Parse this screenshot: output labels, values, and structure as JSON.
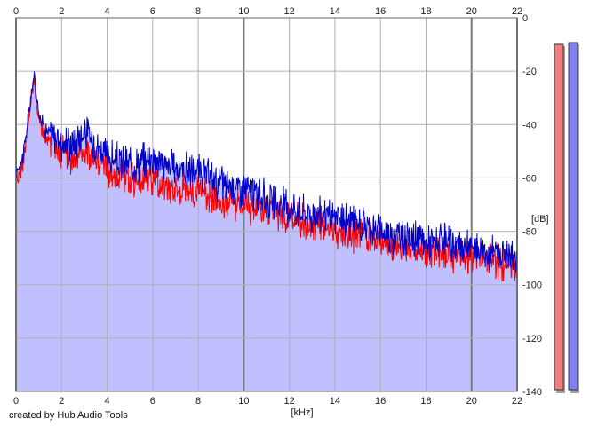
{
  "chart_data": {
    "type": "area",
    "title": "",
    "xlabel": "[kHz]",
    "ylabel": "[dB]",
    "xlim": [
      0,
      22
    ],
    "ylim": [
      -140,
      0
    ],
    "x_ticks": [
      0,
      2,
      4,
      6,
      8,
      10,
      12,
      14,
      16,
      18,
      20,
      22
    ],
    "y_ticks": [
      0,
      -20,
      -40,
      -60,
      -80,
      -100,
      -120,
      -140
    ],
    "y_tick_labels": [
      "0",
      "-20",
      "-40",
      "-60",
      "-80",
      "-100",
      "-120",
      "-140"
    ],
    "x_tick_labels": [
      "0",
      "2",
      "4",
      "6",
      "8",
      "10",
      "12",
      "14",
      "16",
      "18",
      "20",
      "22"
    ],
    "grid": true,
    "fill_color": "#c0c0ff",
    "series": [
      {
        "color": "#ff0000",
        "x": [
          0,
          0.3,
          0.5,
          0.7,
          0.8,
          0.9,
          1.1,
          1.3,
          1.6,
          2.0,
          2.5,
          3.0,
          3.5,
          4.0,
          4.5,
          5.0,
          5.5,
          6.0,
          6.5,
          7.0,
          7.5,
          8.0,
          8.5,
          9.0,
          9.5,
          10.0,
          10.5,
          11.0,
          11.5,
          12.0,
          12.5,
          13.0,
          13.5,
          14.0,
          14.5,
          15.0,
          15.5,
          16.0,
          16.5,
          17.0,
          17.5,
          18.0,
          18.5,
          19.0,
          19.5,
          20.0,
          20.5,
          21.0,
          21.5,
          22.0
        ],
        "y": [
          -62,
          -55,
          -42,
          -30,
          -23,
          -33,
          -41,
          -45,
          -47,
          -50,
          -54,
          -49,
          -53,
          -56,
          -59,
          -60,
          -61,
          -60,
          -63,
          -64,
          -65,
          -65,
          -67,
          -68,
          -69,
          -69,
          -72,
          -73,
          -74,
          -75,
          -76,
          -78,
          -78,
          -79,
          -80,
          -81,
          -82,
          -84,
          -85,
          -86,
          -87,
          -87,
          -88,
          -89,
          -89,
          -90,
          -90,
          -91,
          -92,
          -93
        ]
      },
      {
        "color": "#0000cc",
        "x": [
          0,
          0.3,
          0.5,
          0.7,
          0.8,
          0.9,
          1.1,
          1.3,
          1.6,
          2.0,
          2.5,
          3.0,
          3.5,
          4.0,
          4.5,
          5.0,
          5.5,
          6.0,
          6.5,
          7.0,
          7.5,
          8.0,
          8.5,
          9.0,
          9.5,
          10.0,
          10.5,
          11.0,
          11.5,
          12.0,
          12.5,
          13.0,
          13.5,
          14.0,
          14.5,
          15.0,
          15.5,
          16.0,
          16.5,
          17.0,
          17.5,
          18.0,
          18.5,
          19.0,
          19.5,
          20.0,
          20.5,
          21.0,
          21.5,
          22.0
        ],
        "y": [
          -58,
          -52,
          -40,
          -27,
          -21,
          -30,
          -38,
          -42,
          -44,
          -47,
          -47,
          -42,
          -47,
          -52,
          -54,
          -55,
          -54,
          -52,
          -55,
          -56,
          -57,
          -58,
          -60,
          -62,
          -63,
          -64,
          -66,
          -68,
          -70,
          -71,
          -72,
          -74,
          -74,
          -75,
          -76,
          -77,
          -78,
          -80,
          -81,
          -82,
          -83,
          -84,
          -84,
          -85,
          -86,
          -86,
          -87,
          -88,
          -88,
          -90
        ]
      }
    ]
  },
  "level_meters": [
    {
      "color": "#f08080",
      "level_db": -140
    },
    {
      "color": "#8080f0",
      "level_db": -140
    }
  ],
  "footer": {
    "credit": "created by Hub Audio Tools"
  }
}
